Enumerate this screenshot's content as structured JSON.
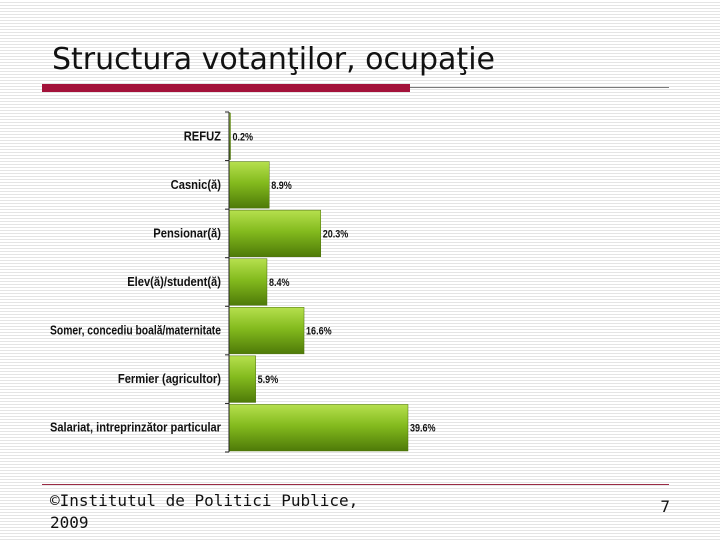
{
  "slide": {
    "title": "Structura votanţilor, ocupaţie",
    "footer": "©Institutul de Politici Publice, 2009",
    "page_number": "7"
  },
  "chart_data": {
    "type": "bar",
    "orientation": "horizontal",
    "categories": [
      "REFUZ",
      "Casnic(ă)",
      "Pensionar(ă)",
      "Elev(ă)/student(ă)",
      "Somer, concediu boală/maternitate",
      "Fermier (agricultor)",
      "Salariat, intreprinzător particular"
    ],
    "values": [
      0.2,
      8.9,
      20.3,
      8.4,
      16.6,
      5.9,
      39.6
    ],
    "value_labels": [
      "0.2%",
      "8.9%",
      "20.3%",
      "8.4%",
      "16.6%",
      "5.9%",
      "39.6%"
    ],
    "bar_color": "#7fb51c",
    "grid": false,
    "legend": "none"
  }
}
